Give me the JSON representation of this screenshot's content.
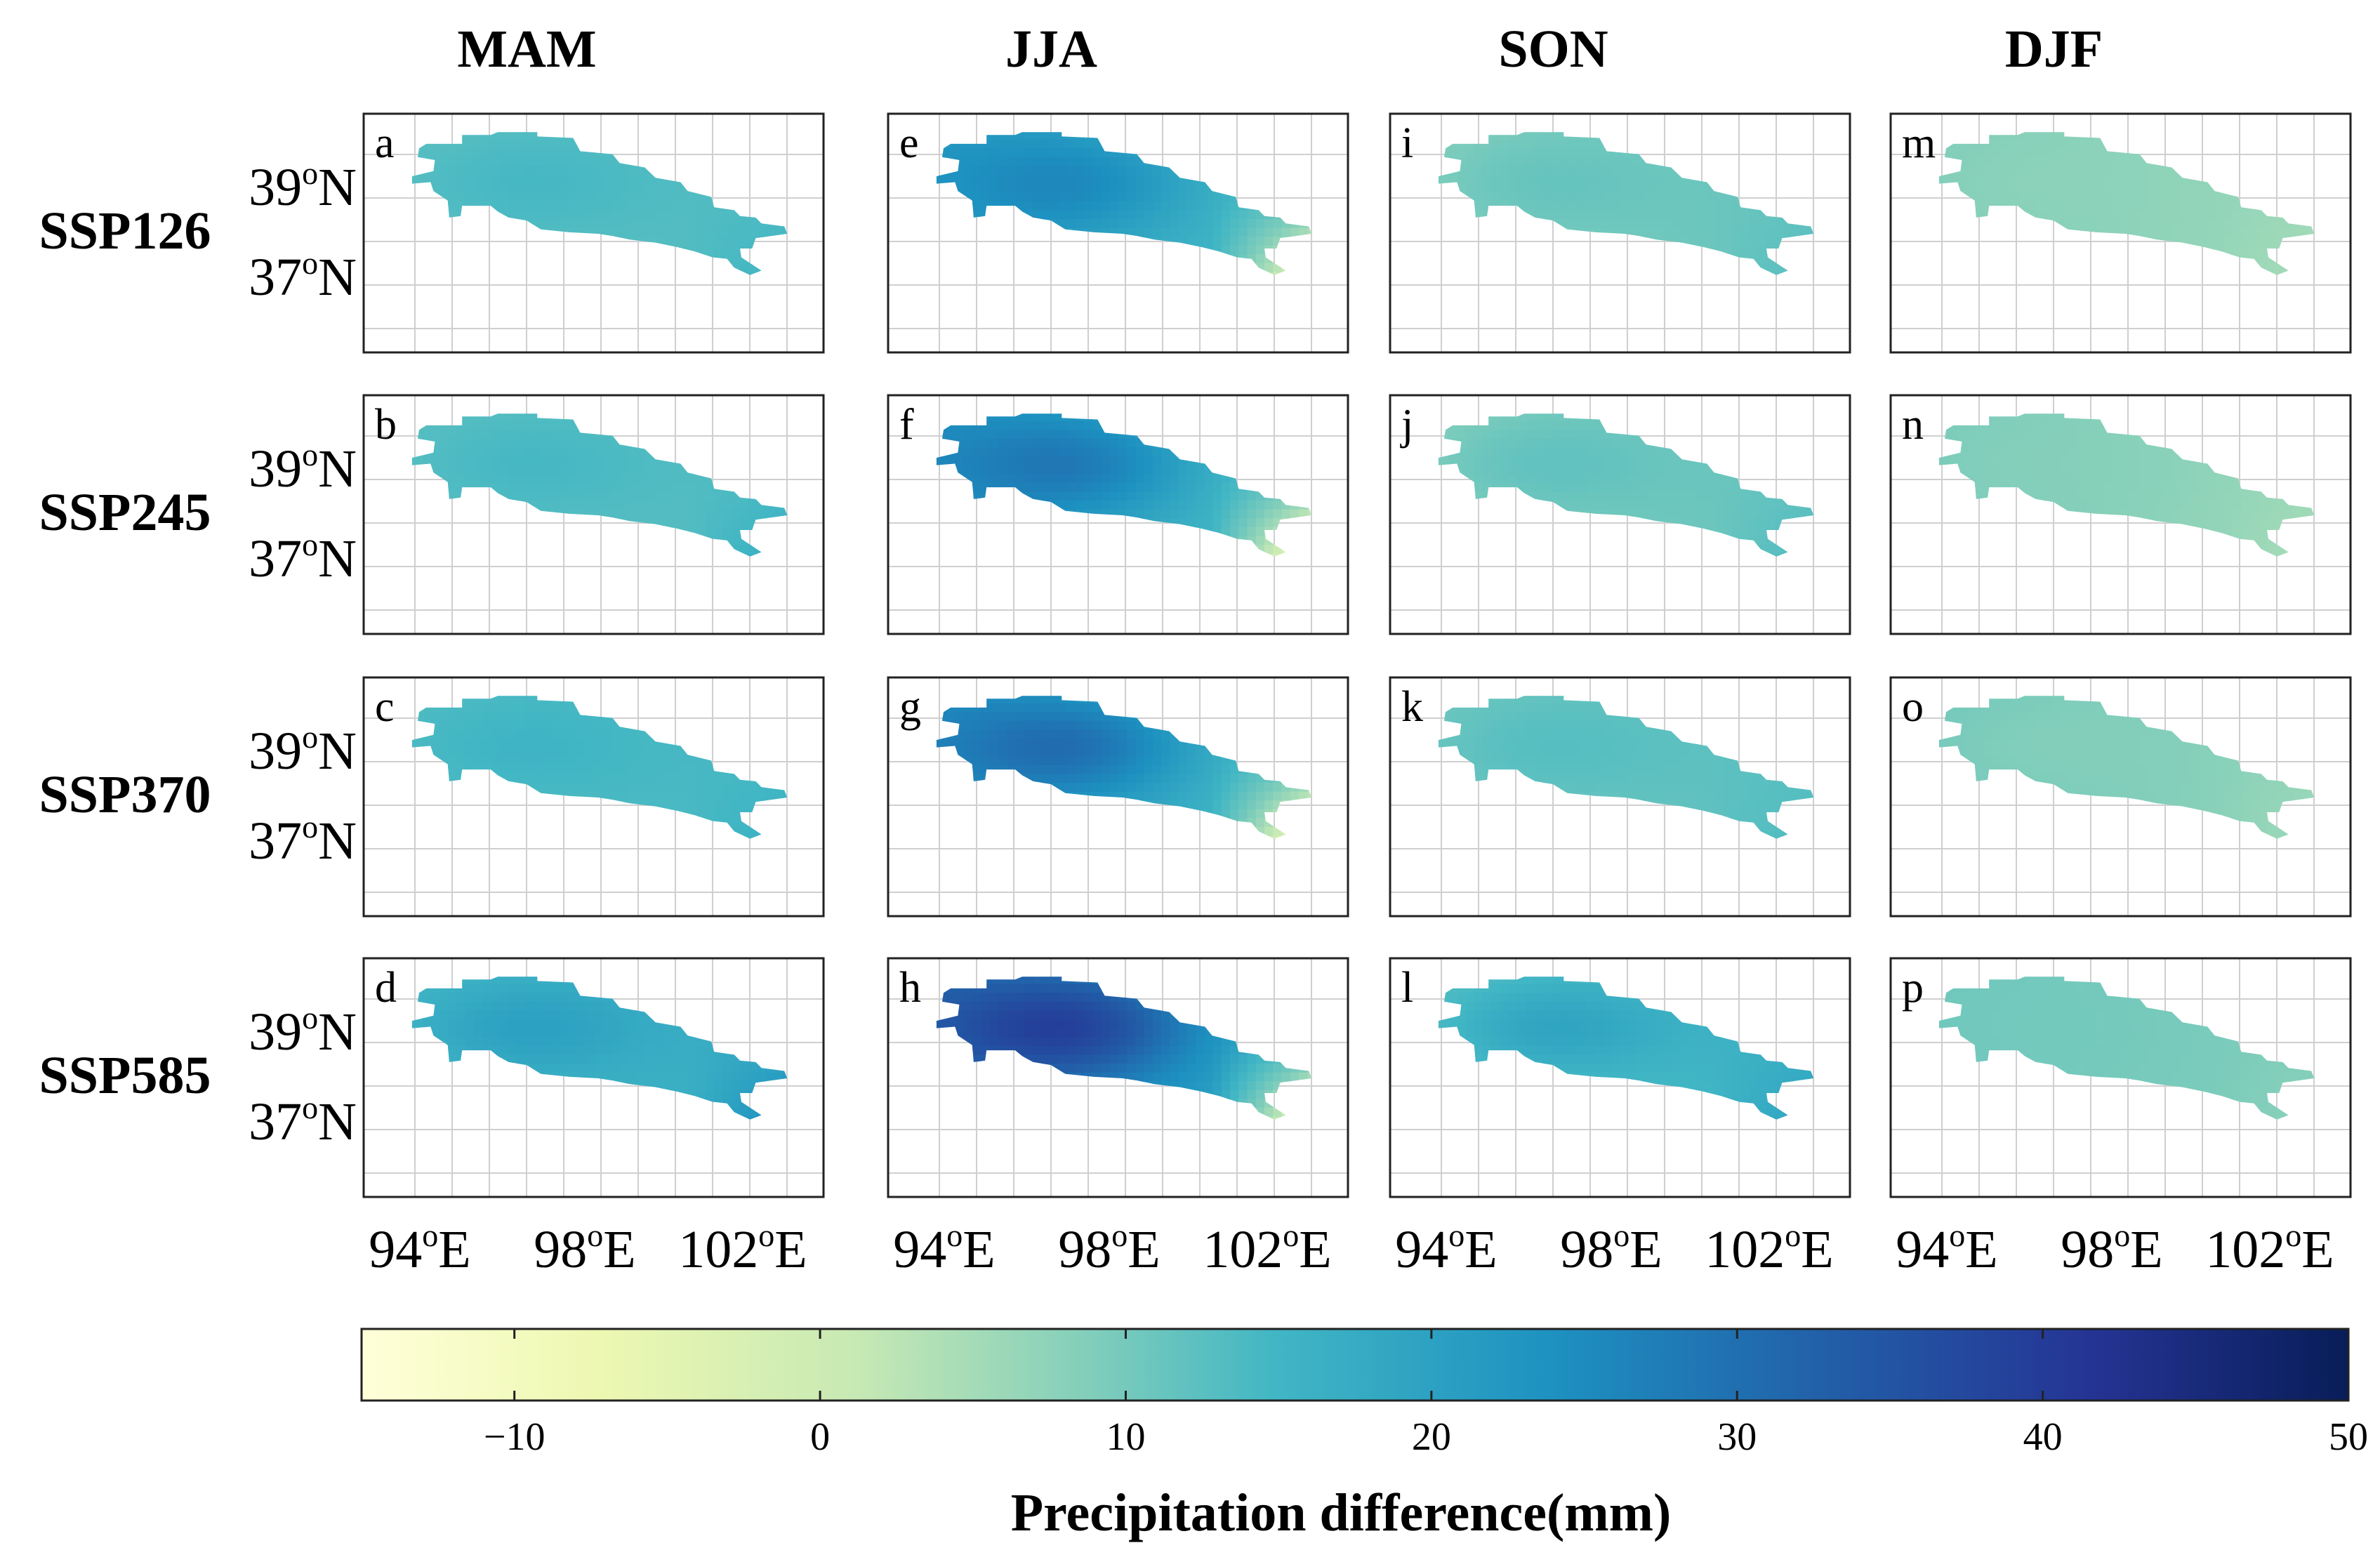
{
  "seasons": [
    "MAM",
    "JJA",
    "SON",
    "DJF"
  ],
  "scenarios": [
    "SSP126",
    "SSP245",
    "SSP370",
    "SSP585"
  ],
  "panel_letters": [
    [
      "a",
      "e",
      "i",
      "m"
    ],
    [
      "b",
      "f",
      "j",
      "n"
    ],
    [
      "c",
      "g",
      "k",
      "o"
    ],
    [
      "d",
      "h",
      "l",
      "p"
    ]
  ],
  "lat_labels": [
    {
      "deg": "39",
      "sup": "o",
      "hemi": "N"
    },
    {
      "deg": "37",
      "sup": "o",
      "hemi": "N"
    }
  ],
  "lon_labels": [
    {
      "deg": "94",
      "sup": "o",
      "hemi": "E"
    },
    {
      "deg": "98",
      "sup": "o",
      "hemi": "E"
    },
    {
      "deg": "102",
      "sup": "o",
      "hemi": "E"
    }
  ],
  "colorbar": {
    "label": "Precipitation difference(mm)",
    "min": -15,
    "max": 50,
    "ticks": [
      "−10",
      "0",
      "10",
      "20",
      "30",
      "40",
      "50"
    ],
    "tick_values": [
      -10,
      0,
      10,
      20,
      30,
      40,
      50
    ],
    "colormap": [
      "#ffffd9",
      "#edf8b1",
      "#c7e9b4",
      "#7fcdbb",
      "#41b6c4",
      "#1d91c0",
      "#225ea8",
      "#253494",
      "#081d58"
    ]
  },
  "chart_data": {
    "type": "heatmap",
    "title": "",
    "rows": [
      "SSP126",
      "SSP245",
      "SSP370",
      "SSP585"
    ],
    "columns": [
      "MAM",
      "JJA",
      "SON",
      "DJF"
    ],
    "lon_range": [
      92,
      104
    ],
    "lat_range": [
      35.5,
      40.5
    ],
    "units": "mm",
    "panel_fields": [
      [
        {
          "base": 14,
          "west": 14,
          "east": 16,
          "south_east": 18,
          "hotspot": 18
        },
        {
          "base": 22,
          "west": 24,
          "east": 14,
          "south_east": -6,
          "hotspot": 30
        },
        {
          "base": 10,
          "west": 8,
          "east": 14,
          "south_east": 15,
          "hotspot": 14
        },
        {
          "base": 7,
          "west": 10,
          "east": 6,
          "south_east": 5,
          "hotspot": 8
        }
      ],
      [
        {
          "base": 14,
          "west": 14,
          "east": 16,
          "south_east": 20,
          "hotspot": 18
        },
        {
          "base": 24,
          "west": 26,
          "east": 12,
          "south_east": -10,
          "hotspot": 33
        },
        {
          "base": 10,
          "west": 8,
          "east": 14,
          "south_east": 16,
          "hotspot": 15
        },
        {
          "base": 7,
          "west": 11,
          "east": 6,
          "south_east": 5,
          "hotspot": 9
        }
      ],
      [
        {
          "base": 16,
          "west": 15,
          "east": 17,
          "south_east": 19,
          "hotspot": 19
        },
        {
          "base": 26,
          "west": 26,
          "east": 12,
          "south_east": -10,
          "hotspot": 35
        },
        {
          "base": 12,
          "west": 11,
          "east": 15,
          "south_east": 16,
          "hotspot": 16
        },
        {
          "base": 8,
          "west": 12,
          "east": 7,
          "south_east": 6,
          "hotspot": 9
        }
      ],
      [
        {
          "base": 19,
          "west": 16,
          "east": 20,
          "south_east": 26,
          "hotspot": 24
        },
        {
          "base": 30,
          "west": 32,
          "east": 16,
          "south_east": -8,
          "hotspot": 45
        },
        {
          "base": 16,
          "west": 13,
          "east": 20,
          "south_east": 22,
          "hotspot": 24
        },
        {
          "base": 10,
          "west": 12,
          "east": 9,
          "south_east": 8,
          "hotspot": 11
        }
      ]
    ]
  }
}
